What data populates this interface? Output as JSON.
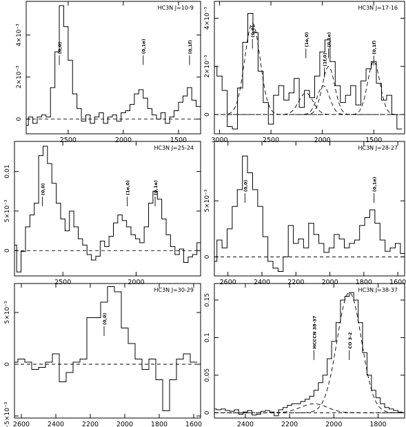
{
  "chart_data": [
    {
      "type": "line",
      "title": "HC3N J=10-9",
      "xlim": [
        2880,
        1300
      ],
      "ylim": [
        -0.0007,
        0.0056
      ],
      "xticks": [
        2500,
        2000,
        1500
      ],
      "yticks": [
        {
          "v": 0,
          "label": "0"
        },
        {
          "v": 0.002,
          "label": "2×10⁻³"
        },
        {
          "v": 0.004,
          "label": "4×10⁻³"
        }
      ],
      "baseline": 0,
      "series": [
        {
          "x": [
            2880,
            2840,
            2800,
            2760,
            2720,
            2680,
            2640,
            2600,
            2560,
            2520,
            2480,
            2440,
            2400,
            2360,
            2320,
            2280,
            2240,
            2200,
            2160,
            2120,
            2080,
            2040,
            2000,
            1960,
            1920,
            1880,
            1840,
            1800,
            1760,
            1720,
            1680,
            1640,
            1600,
            1560,
            1520,
            1480,
            1440,
            1400,
            1360,
            1320
          ],
          "y": [
            -0.0003,
            0.0001,
            -0.0002,
            0.0001,
            0.0002,
            0.0001,
            0.0015,
            0.0032,
            0.0054,
            0.0044,
            0.0028,
            0.0012,
            0.0005,
            -0.0001,
            0.0002,
            -0.0002,
            0.0001,
            0.0003,
            -0.0002,
            0.0001,
            0.0002,
            -0.0001,
            0.0003,
            0.0004,
            0.0007,
            0.0012,
            0.0014,
            0.001,
            0.0005,
            0.0002,
            0.0,
            0.0003,
            -0.0002,
            0.0001,
            0.0004,
            0.0008,
            0.0011,
            0.0015,
            0.0009,
            0.0006
          ]
        }
      ],
      "annotations": [
        {
          "x": 2580,
          "y": 0.0031,
          "label": "(0,0)"
        },
        {
          "x": 1820,
          "y": 0.0031,
          "label": "(0,1e)"
        },
        {
          "x": 1400,
          "y": 0.0031,
          "label": "(0,1f)"
        }
      ]
    },
    {
      "type": "line",
      "title": "HC3N J=17-16",
      "xlim": [
        3050,
        1200
      ],
      "ylim": [
        -0.0008,
        0.0047
      ],
      "xticks": [
        3000,
        2500,
        2000,
        1500
      ],
      "yticks": [
        {
          "v": 0,
          "label": "0"
        },
        {
          "v": 0.002,
          "label": "2×10⁻³"
        },
        {
          "v": 0.004,
          "label": "4×10⁻³"
        }
      ],
      "baseline": 0,
      "series": [
        {
          "x": [
            3050,
            3000,
            2950,
            2900,
            2850,
            2800,
            2750,
            2700,
            2650,
            2600,
            2550,
            2500,
            2450,
            2400,
            2350,
            2300,
            2250,
            2200,
            2150,
            2100,
            2050,
            2000,
            1950,
            1900,
            1850,
            1800,
            1750,
            1700,
            1650,
            1600,
            1550,
            1500,
            1450,
            1400,
            1350,
            1300,
            1250
          ],
          "y": [
            0.002,
            0.0016,
            0.001,
            -0.0005,
            -0.0006,
            0.0011,
            0.003,
            0.0042,
            0.0034,
            0.0018,
            0.0005,
            -0.0004,
            0.0008,
            0.0012,
            0.0006,
            0.0009,
            0.0015,
            0.0003,
            0.001,
            0.0007,
            0.0016,
            0.0026,
            0.0031,
            0.0022,
            0.0012,
            0.0005,
            0.0008,
            0.0012,
            0.0004,
            0.0014,
            0.0019,
            0.0022,
            0.0013,
            0.0006,
            0.0008,
            0.0,
            -0.0006
          ]
        }
      ],
      "fit_components": [
        {
          "center": 2680,
          "amp": 0.0038,
          "sigma": 75
        },
        {
          "center": 2160,
          "amp": 0.0009,
          "sigma": 70
        },
        {
          "center": 1990,
          "amp": 0.0012,
          "sigma": 60
        },
        {
          "center": 1940,
          "amp": 0.002,
          "sigma": 60
        },
        {
          "center": 1500,
          "amp": 0.0022,
          "sigma": 60
        }
      ],
      "annotations": [
        {
          "x": 2680,
          "y": 0.0032,
          "label": "(0,0)"
        },
        {
          "x": 2160,
          "y": 0.0028,
          "label": "(1e,0)"
        },
        {
          "x": 1980,
          "y": 0.002,
          "label": "(1f,0)"
        },
        {
          "x": 1940,
          "y": 0.0028,
          "label": "(0,1e)"
        },
        {
          "x": 1500,
          "y": 0.0025,
          "label": "(0,1f)"
        }
      ]
    },
    {
      "type": "line",
      "title": "HC3N J=25-24",
      "xlim": [
        2830,
        1560
      ],
      "ylim": [
        -0.0032,
        0.0138
      ],
      "xticks": [
        2500,
        2000
      ],
      "yticks": [
        {
          "v": 0,
          "label": "0"
        },
        {
          "v": 0.005,
          "label": "5×10⁻³"
        },
        {
          "v": 0.01,
          "label": "0.01"
        }
      ],
      "baseline": 0,
      "series": [
        {
          "x": [
            2830,
            2800,
            2770,
            2740,
            2710,
            2680,
            2650,
            2620,
            2590,
            2560,
            2530,
            2500,
            2470,
            2440,
            2410,
            2380,
            2350,
            2320,
            2290,
            2260,
            2230,
            2200,
            2170,
            2140,
            2110,
            2080,
            2050,
            2020,
            1990,
            1960,
            1930,
            1900,
            1870,
            1840,
            1810,
            1780,
            1750,
            1720,
            1690,
            1660,
            1630,
            1600,
            1570
          ],
          "y": [
            0.0007,
            -0.0027,
            -0.0001,
            0.003,
            0.0045,
            0.006,
            0.012,
            0.0132,
            0.011,
            0.0085,
            0.006,
            0.004,
            0.0025,
            0.005,
            0.003,
            0.0015,
            0.0007,
            -0.0005,
            -0.0012,
            -0.0007,
            0.0012,
            0.0005,
            0.0018,
            0.0035,
            0.0045,
            0.0038,
            0.003,
            0.002,
            0.0015,
            0.001,
            0.003,
            0.006,
            0.0075,
            0.0065,
            0.004,
            0.002,
            0.0005,
            -0.0005,
            0.0002,
            -0.0015,
            -0.0008,
            -0.0005,
            0.001
          ]
        }
      ],
      "annotations": [
        {
          "x": 2640,
          "y": 0.007,
          "label": "(0,0)"
        },
        {
          "x": 2060,
          "y": 0.007,
          "label": "(1e,0)"
        },
        {
          "x": 1870,
          "y": 0.007,
          "label": "(0,1e)"
        }
      ]
    },
    {
      "type": "line",
      "title": "HC3N J=28-27",
      "xlim": [
        2680,
        1560
      ],
      "ylim": [
        -0.0017,
        0.0103
      ],
      "xticks": [
        2600,
        2400,
        2200,
        2000,
        1800,
        1600
      ],
      "yticks": [
        {
          "v": 0,
          "label": "0"
        },
        {
          "v": 0.005,
          "label": "5×10⁻³"
        }
      ],
      "baseline": 0,
      "series": [
        {
          "x": [
            2680,
            2650,
            2620,
            2590,
            2560,
            2530,
            2500,
            2470,
            2440,
            2410,
            2380,
            2350,
            2320,
            2290,
            2260,
            2230,
            2200,
            2170,
            2140,
            2110,
            2080,
            2050,
            2020,
            1990,
            1960,
            1930,
            1900,
            1870,
            1840,
            1810,
            1780,
            1750,
            1720,
            1690,
            1660,
            1630,
            1600,
            1570
          ],
          "y": [
            -0.0004,
            0.0015,
            0.0008,
            0.0025,
            0.0045,
            0.006,
            0.009,
            0.0075,
            0.006,
            0.0045,
            0.0018,
            -0.0004,
            -0.001,
            -0.0013,
            0.0,
            0.0028,
            0.0012,
            0.0016,
            0.0008,
            0.003,
            0.002,
            0.0012,
            0.0004,
            0.0008,
            0.002,
            0.0016,
            0.0008,
            0.0012,
            0.0015,
            0.0028,
            0.0035,
            0.0042,
            0.003,
            0.0015,
            0.0005,
            0.0008,
            0.0012,
            0.0003
          ]
        }
      ],
      "annotations": [
        {
          "x": 2500,
          "y": 0.0058,
          "label": "(0,0)"
        },
        {
          "x": 1740,
          "y": 0.0058,
          "label": "(0,1e)"
        }
      ]
    },
    {
      "type": "line",
      "title": "HC3N J=30-29",
      "xlim": [
        2640,
        1560
      ],
      "ylim": [
        -0.0052,
        0.0078
      ],
      "xticks": [
        2600,
        2400,
        2200,
        2000,
        1800,
        1600
      ],
      "yticks": [
        {
          "v": -0.005,
          "label": "−5×10⁻³"
        },
        {
          "v": 0,
          "label": "0"
        },
        {
          "v": 0.005,
          "label": "5×10⁻³"
        }
      ],
      "baseline": 0,
      "series": [
        {
          "x": [
            2640,
            2600,
            2560,
            2520,
            2480,
            2440,
            2400,
            2360,
            2320,
            2280,
            2240,
            2200,
            2160,
            2120,
            2080,
            2040,
            2000,
            1960,
            1920,
            1880,
            1840,
            1800,
            1760,
            1720,
            1680,
            1640,
            1600
          ],
          "y": [
            0.0002,
            0.0005,
            0.0002,
            -0.0005,
            -0.0003,
            0.0002,
            0.001,
            -0.0017,
            -0.0008,
            0.0002,
            0.0005,
            0.0045,
            0.0045,
            0.006,
            0.0075,
            0.007,
            0.0035,
            0.002,
            0.0005,
            -0.0005,
            0.0005,
            -0.0015,
            -0.0045,
            -0.0015,
            0.0005,
            0.001,
            0.0002
          ]
        }
      ],
      "annotations": [
        {
          "x": 2120,
          "y": 0.0038,
          "label": "(0,0)"
        }
      ]
    },
    {
      "type": "line",
      "title": "HC3N J=38-37",
      "xlim": [
        2540,
        1680
      ],
      "ylim": [
        -0.007,
        0.172
      ],
      "xticks": [
        2400,
        2200,
        2000,
        1800
      ],
      "yticks": [
        {
          "v": 0,
          "label": "0"
        },
        {
          "v": 0.05,
          "label": "0.05"
        },
        {
          "v": 0.1,
          "label": "0.1"
        },
        {
          "v": 0.15,
          "label": "0.15"
        }
      ],
      "baseline": 0,
      "series": [
        {
          "x": [
            2540,
            2520,
            2500,
            2480,
            2460,
            2440,
            2420,
            2400,
            2380,
            2360,
            2340,
            2320,
            2300,
            2280,
            2260,
            2240,
            2220,
            2200,
            2180,
            2160,
            2140,
            2120,
            2100,
            2080,
            2060,
            2040,
            2020,
            2000,
            1980,
            1960,
            1940,
            1920,
            1900,
            1880,
            1860,
            1840,
            1820,
            1800,
            1780,
            1760,
            1740,
            1720,
            1700
          ],
          "y": [
            0.005,
            0.004,
            0.005,
            0.003,
            0.002,
            0.004,
            -0.002,
            0.001,
            0.003,
            -0.003,
            -0.002,
            0.002,
            0.003,
            0.001,
            -0.004,
            0.004,
            0.007,
            0.01,
            0.012,
            0.012,
            0.015,
            0.018,
            0.022,
            0.03,
            0.04,
            0.05,
            0.072,
            0.095,
            0.12,
            0.15,
            0.155,
            0.16,
            0.15,
            0.12,
            0.08,
            0.05,
            0.03,
            0.02,
            0.012,
            0.007,
            0.005,
            0.003,
            0.001
          ]
        }
      ],
      "fit_components": [
        {
          "center": 1930,
          "amp": 0.16,
          "sigma": 55
        },
        {
          "center": 2090,
          "amp": 0.012,
          "sigma": 60
        }
      ],
      "annotations": [
        {
          "x": 2090,
          "y": 0.085,
          "label": "HCCCN 38-37"
        },
        {
          "x": 1930,
          "y": 0.085,
          "label": "CO 3-2"
        }
      ]
    }
  ]
}
